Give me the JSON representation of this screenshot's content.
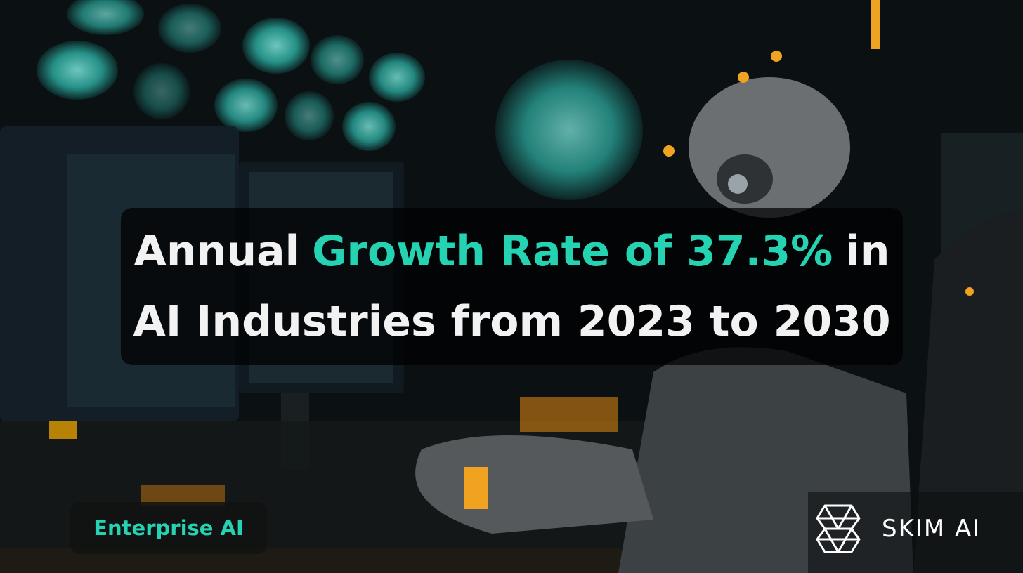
{
  "headline": {
    "line1": [
      "Annual",
      "Growth Rate of 37.3%",
      "in"
    ],
    "line2": "AI Industries from 2023 to 2030"
  },
  "tag": "Enterprise AI",
  "brand": "SKIM AI"
}
